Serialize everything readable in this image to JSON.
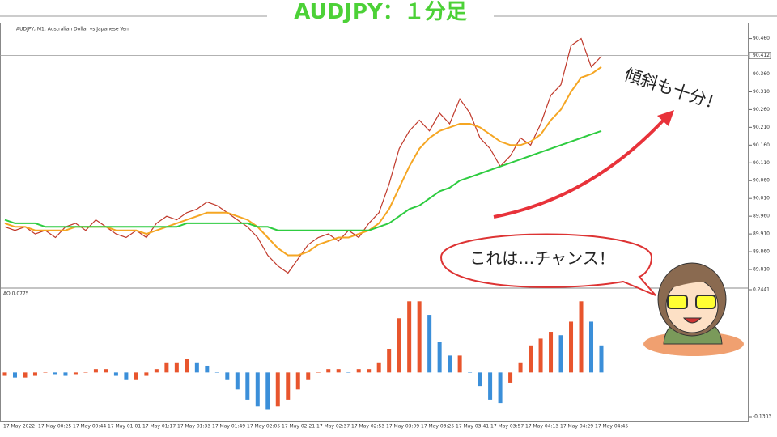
{
  "title": "AUDJPY：１分足",
  "chart_data": [
    {
      "type": "line",
      "title": "AUDJPY, M1: Australian Dollar vs Japanese Yen",
      "ylim": [
        89.76,
        90.5
      ],
      "yticks": [
        {
          "value": 89.81,
          "label": "89.810"
        },
        {
          "value": 89.86,
          "label": "89.860"
        },
        {
          "value": 89.91,
          "label": "89.910"
        },
        {
          "value": 89.96,
          "label": "89.960"
        },
        {
          "value": 90.01,
          "label": "90.010"
        },
        {
          "value": 90.06,
          "label": "90.060"
        },
        {
          "value": 90.11,
          "label": "90.110"
        },
        {
          "value": 90.16,
          "label": "90.160"
        },
        {
          "value": 90.21,
          "label": "90.210"
        },
        {
          "value": 90.26,
          "label": "90.260"
        },
        {
          "value": 90.31,
          "label": "90.310"
        },
        {
          "value": 90.36,
          "label": "90.360"
        },
        {
          "value": 90.41,
          "label": "90.410"
        },
        {
          "value": 90.46,
          "label": "90.460"
        }
      ],
      "current_price": {
        "value": 90.412,
        "label": "90.412"
      },
      "series": [
        {
          "color": "#c0392b",
          "values": [
            89.93,
            89.92,
            89.93,
            89.91,
            89.92,
            89.9,
            89.93,
            89.94,
            89.92,
            89.95,
            89.93,
            89.91,
            89.9,
            89.92,
            89.9,
            89.94,
            89.96,
            89.95,
            89.97,
            89.98,
            90.0,
            89.99,
            89.97,
            89.95,
            89.93,
            89.9,
            89.85,
            89.82,
            89.8,
            89.84,
            89.88,
            89.9,
            89.91,
            89.89,
            89.92,
            89.9,
            89.94,
            89.97,
            90.05,
            90.15,
            90.2,
            90.23,
            90.2,
            90.25,
            90.22,
            90.29,
            90.25,
            90.18,
            90.15,
            90.1,
            90.13,
            90.18,
            90.16,
            90.22,
            90.3,
            90.33,
            90.44,
            90.46,
            90.38,
            90.41
          ]
        },
        {
          "color": "#f5a623",
          "values": [
            89.94,
            89.93,
            89.93,
            89.92,
            89.92,
            89.92,
            89.92,
            89.93,
            89.93,
            89.93,
            89.93,
            89.92,
            89.92,
            89.92,
            89.91,
            89.92,
            89.93,
            89.94,
            89.95,
            89.96,
            89.97,
            89.97,
            89.97,
            89.96,
            89.95,
            89.93,
            89.9,
            89.87,
            89.85,
            89.85,
            89.86,
            89.88,
            89.89,
            89.9,
            89.9,
            89.91,
            89.92,
            89.94,
            89.98,
            90.04,
            90.1,
            90.15,
            90.18,
            90.2,
            90.21,
            90.22,
            90.22,
            90.21,
            90.19,
            90.17,
            90.16,
            90.16,
            90.17,
            90.19,
            90.23,
            90.26,
            90.31,
            90.35,
            90.36,
            90.38
          ]
        },
        {
          "color": "#2ecc40",
          "values": [
            89.95,
            89.94,
            89.94,
            89.94,
            89.93,
            89.93,
            89.93,
            89.93,
            89.93,
            89.93,
            89.93,
            89.93,
            89.93,
            89.93,
            89.93,
            89.93,
            89.93,
            89.93,
            89.94,
            89.94,
            89.94,
            89.94,
            89.94,
            89.94,
            89.94,
            89.93,
            89.93,
            89.92,
            89.92,
            89.92,
            89.92,
            89.92,
            89.92,
            89.92,
            89.92,
            89.92,
            89.92,
            89.93,
            89.94,
            89.96,
            89.98,
            89.99,
            90.01,
            90.03,
            90.04,
            90.06,
            90.07,
            90.08,
            90.09,
            90.1,
            90.11,
            90.12,
            90.13,
            90.14,
            90.15,
            90.16,
            90.17,
            90.18,
            90.19,
            90.2
          ]
        }
      ]
    },
    {
      "type": "bar",
      "title": "AO 0.0775",
      "ylim": [
        -0.1303,
        0.2441
      ],
      "yticks": [
        0.2441,
        -0.1303
      ],
      "up_color": "#e8552d",
      "down_color": "#3b8fd9",
      "values": [
        -0.01,
        -0.015,
        -0.015,
        -0.01,
        0.0,
        -0.005,
        -0.01,
        -0.005,
        0.0,
        0.01,
        0.01,
        -0.01,
        -0.02,
        -0.02,
        -0.01,
        0.01,
        0.03,
        0.03,
        0.04,
        0.03,
        0.02,
        0.0,
        -0.02,
        -0.05,
        -0.08,
        -0.1,
        -0.11,
        -0.1,
        -0.08,
        -0.05,
        -0.02,
        0.0,
        0.01,
        0.01,
        0.0,
        0.01,
        0.01,
        0.03,
        0.07,
        0.16,
        0.21,
        0.21,
        0.17,
        0.09,
        0.05,
        0.05,
        0.0,
        -0.04,
        -0.08,
        -0.09,
        -0.03,
        0.03,
        0.08,
        0.1,
        0.12,
        0.11,
        0.15,
        0.21,
        0.15,
        0.08
      ]
    }
  ],
  "time_axis": [
    "17 May 2022",
    "17 May 00:25",
    "17 May 00:44",
    "17 May 01:01",
    "17 May 01:17",
    "17 May 01:33",
    "17 May 01:49",
    "17 May 02:05",
    "17 May 02:21",
    "17 May 02:37",
    "17 May 02:53",
    "17 May 03:09",
    "17 May 03:25",
    "17 May 03:41",
    "17 May 03:57",
    "17 May 04:13",
    "17 May 04:29",
    "17 May 04:45"
  ],
  "slope_note": "傾斜も十分！",
  "bubble": "これは…チャンス！"
}
